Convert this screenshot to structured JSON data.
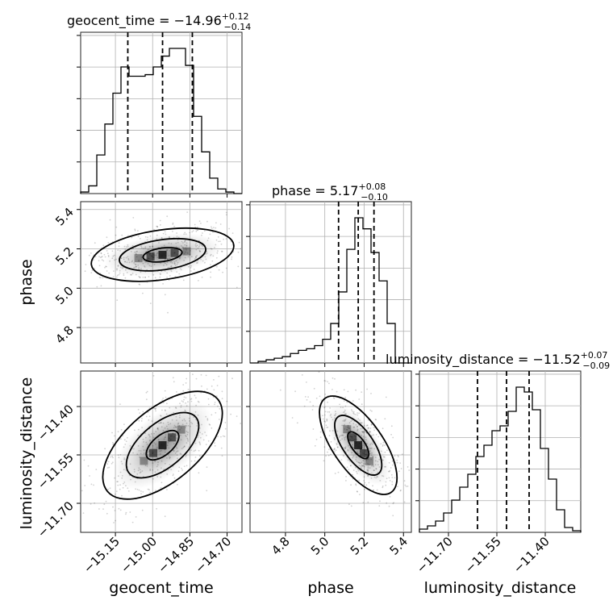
{
  "chart_data": {
    "type": "corner",
    "parameters": [
      "geocent_time",
      "phase",
      "luminosity_distance"
    ],
    "axis_labels": {
      "geocent_time": "geocent_time",
      "phase": "phase",
      "luminosity_distance": "luminosity_distance"
    },
    "ranges": {
      "geocent_time": [
        -15.29,
        -14.64
      ],
      "phase": [
        4.62,
        5.44
      ],
      "luminosity_distance": [
        -11.79,
        -11.29
      ]
    },
    "ticks": {
      "geocent_time": [
        -15.15,
        -15.0,
        -14.85,
        -14.7
      ],
      "phase": [
        4.8,
        5.0,
        5.2,
        5.4
      ],
      "luminosity_distance": [
        -11.7,
        -11.55,
        -11.4
      ]
    },
    "tick_labels": {
      "geocent_time": [
        "−15.15",
        "−15.00",
        "−14.85",
        "−14.70"
      ],
      "phase": [
        "4.8",
        "5.0",
        "5.2",
        "5.4"
      ],
      "luminosity_distance": [
        "−11.70",
        "−11.55",
        "−11.40"
      ]
    },
    "titles": {
      "geocent_time": {
        "name": "geocent_time",
        "median": "−14.96",
        "plus": "+0.12",
        "minus": "−0.14"
      },
      "phase": {
        "name": "phase",
        "median": "5.17",
        "plus": "+0.08",
        "minus": "−0.10"
      },
      "luminosity_distance": {
        "name": "luminosity_distance",
        "median": "−11.52",
        "plus": "+0.07",
        "minus": "−0.09"
      }
    },
    "quantiles": {
      "geocent_time": [
        -15.1,
        -14.96,
        -14.84
      ],
      "phase": [
        5.07,
        5.17,
        5.25
      ],
      "luminosity_distance": [
        -11.61,
        -11.52,
        -11.45
      ]
    },
    "histograms": {
      "geocent_time": [
        0.01,
        0.05,
        0.25,
        0.45,
        0.65,
        0.82,
        0.76,
        0.76,
        0.77,
        0.82,
        0.89,
        0.94,
        0.94,
        0.83,
        0.5,
        0.27,
        0.1,
        0.03,
        0.01,
        0.0
      ],
      "phase": [
        0.0,
        0.01,
        0.02,
        0.03,
        0.04,
        0.06,
        0.08,
        0.09,
        0.11,
        0.15,
        0.25,
        0.45,
        0.72,
        0.92,
        0.85,
        0.7,
        0.52,
        0.25,
        0.0,
        0.0
      ],
      "luminosity_distance": [
        0.02,
        0.04,
        0.07,
        0.12,
        0.2,
        0.28,
        0.36,
        0.47,
        0.54,
        0.63,
        0.66,
        0.75,
        0.9,
        0.87,
        0.76,
        0.52,
        0.33,
        0.14,
        0.03,
        0.01
      ]
    },
    "grid": true
  }
}
